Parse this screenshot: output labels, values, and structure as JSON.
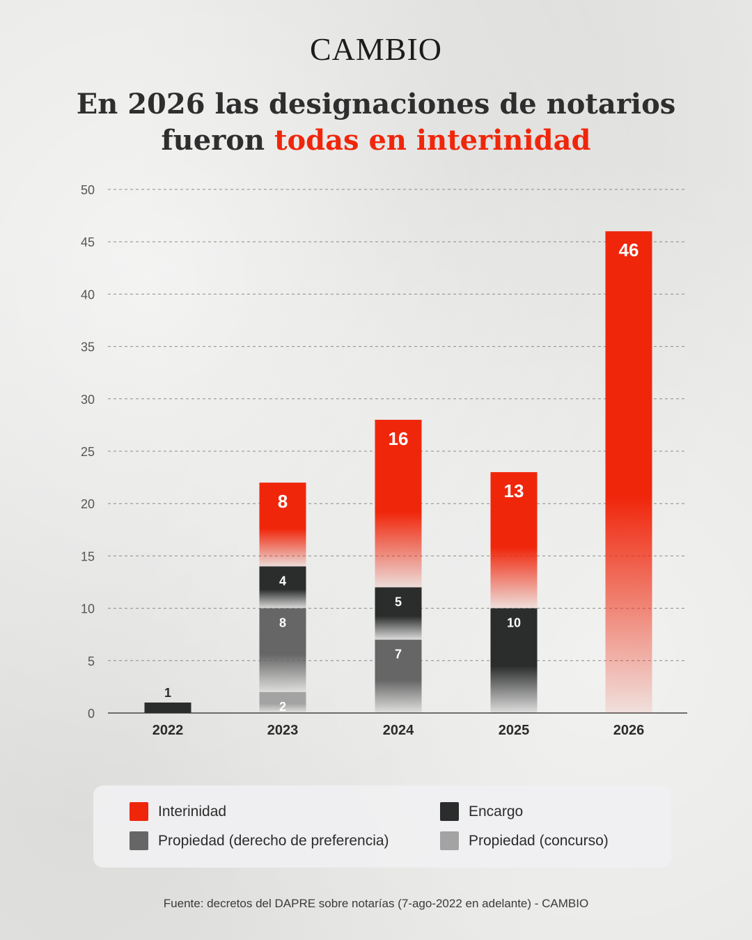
{
  "brand": "CAMBIO",
  "title": {
    "line1": "En 2026 las designaciones de notarios",
    "line2_plain": "fueron ",
    "line2_highlight": "todas en interinidad"
  },
  "source": "Fuente: decretos del DAPRE sobre notarías (7-ago-2022 en adelante) - CAMBIO",
  "colors": {
    "interinidad": "#f0260b",
    "encargo": "#2b2d2d",
    "preferencia": "#666666",
    "concurso": "#a3a3a3",
    "highlight": "#f0260b"
  },
  "legend": [
    {
      "key": "interinidad",
      "label": "Interinidad"
    },
    {
      "key": "encargo",
      "label": "Encargo"
    },
    {
      "key": "preferencia",
      "label": "Propiedad (derecho de preferencia)"
    },
    {
      "key": "concurso",
      "label": "Propiedad (concurso)"
    }
  ],
  "chart_data": {
    "type": "bar",
    "stacked": true,
    "categories": [
      "2022",
      "2023",
      "2024",
      "2025",
      "2026"
    ],
    "series": [
      {
        "key": "concurso",
        "name": "Propiedad (concurso)",
        "values": [
          0,
          2,
          0,
          0,
          0
        ]
      },
      {
        "key": "preferencia",
        "name": "Propiedad (derecho de preferencia)",
        "values": [
          0,
          8,
          7,
          0,
          0
        ]
      },
      {
        "key": "encargo",
        "name": "Encargo",
        "values": [
          1,
          4,
          5,
          10,
          0
        ]
      },
      {
        "key": "interinidad",
        "name": "Interinidad",
        "values": [
          0,
          8,
          16,
          13,
          46
        ]
      }
    ],
    "ylim": [
      0,
      50
    ],
    "yticks": [
      0,
      5,
      10,
      15,
      20,
      25,
      30,
      35,
      40,
      45,
      50
    ],
    "grid": true
  }
}
